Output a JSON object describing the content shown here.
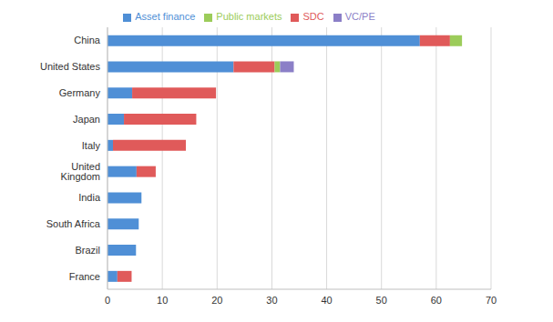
{
  "chart_data": {
    "type": "bar",
    "orientation": "horizontal",
    "stacked": true,
    "grid": true,
    "legend": "top",
    "categories": [
      "China",
      "United States",
      "Germany",
      "Japan",
      "Italy",
      "United Kingdom",
      "India",
      "South Africa",
      "Brazil",
      "France"
    ],
    "series": [
      {
        "name": "Asset finance",
        "color": "#4f8fd6",
        "values": [
          57,
          23,
          4.5,
          3,
          1,
          5.3,
          6.2,
          5.7,
          5.2,
          1.8
        ]
      },
      {
        "name": "SDC",
        "color": "#e05a5a",
        "values": [
          5.5,
          7.5,
          15.3,
          13.2,
          13.3,
          3.5,
          0,
          0,
          0,
          2.6
        ]
      },
      {
        "name": "Public markets",
        "color": "#9ccc5a",
        "values": [
          2.2,
          1,
          0,
          0,
          0,
          0,
          0,
          0,
          0,
          0
        ]
      },
      {
        "name": "VC/PE",
        "color": "#8b7fc7",
        "values": [
          0,
          2.5,
          0,
          0,
          0,
          0,
          0,
          0,
          0,
          0
        ]
      }
    ],
    "xlim": [
      0,
      70
    ],
    "xticks": [
      0,
      10,
      20,
      30,
      40,
      50,
      60,
      70
    ]
  }
}
